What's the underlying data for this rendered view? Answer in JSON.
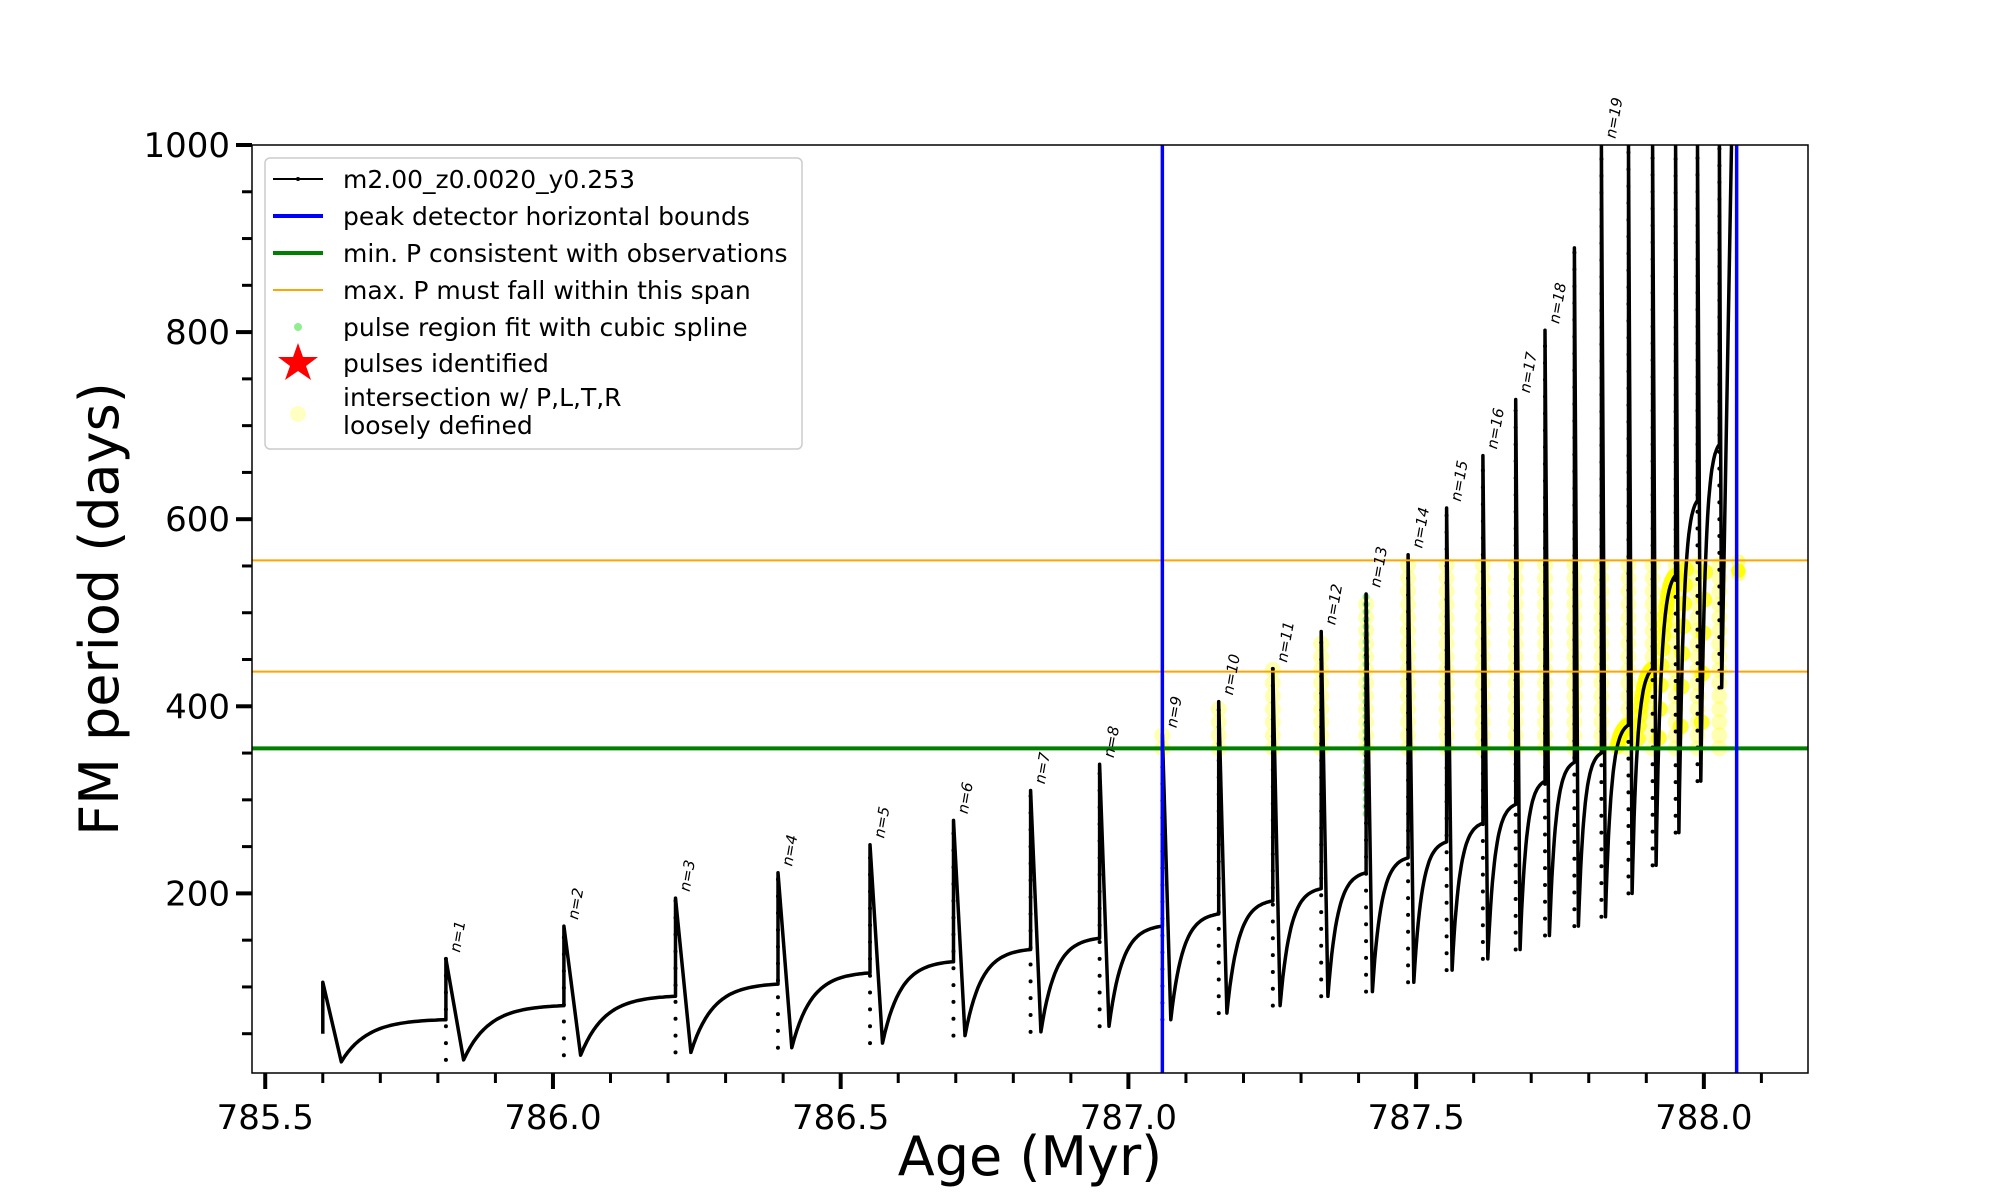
{
  "chart_data": {
    "type": "line",
    "xlabel": "Age (Myr)",
    "ylabel": "FM period (days)",
    "xlim": [
      785.477,
      788.181
    ],
    "ylim": [
      8,
      1000
    ],
    "xticks": [
      785.5,
      786.0,
      786.5,
      787.0,
      787.5,
      788.0
    ],
    "xtick_labels": [
      "785.5",
      "786.0",
      "786.5",
      "787.0",
      "787.5",
      "788.0"
    ],
    "yticks": [
      200,
      400,
      600,
      800,
      1000
    ],
    "ytick_labels": [
      "200",
      "400",
      "600",
      "800",
      "1000"
    ],
    "legend_position": "top-left",
    "legend": [
      {
        "label": "m2.00_z0.0020_y0.253",
        "style": "black-line-dots"
      },
      {
        "label": "peak detector horizontal bounds",
        "style": "blue-line"
      },
      {
        "label": "min. P consistent with observations",
        "style": "green-line"
      },
      {
        "label": "max. P must fall within this span",
        "style": "orange-line"
      },
      {
        "label": "pulse region fit with cubic spline",
        "style": "green-dot"
      },
      {
        "label": "pulses identified",
        "style": "red-star"
      },
      {
        "label": "intersection w/ P,L,T,R",
        "label2": "loosely defined",
        "style": "yellow-circle"
      }
    ],
    "vertical_bounds": [
      787.059,
      788.057
    ],
    "min_period": 355,
    "max_period_span": [
      437,
      556
    ],
    "initial": {
      "age": 785.6,
      "start": 50,
      "spike": 105,
      "min": 20
    },
    "pulses": [
      {
        "label": "n=1",
        "age": 785.814,
        "pre": 65,
        "peak": 130,
        "min": 22
      },
      {
        "label": "n=2",
        "age": 786.019,
        "pre": 80,
        "peak": 165,
        "min": 27
      },
      {
        "label": "n=3",
        "age": 786.213,
        "pre": 90,
        "peak": 195,
        "min": 30
      },
      {
        "label": "n=4",
        "age": 786.391,
        "pre": 103,
        "peak": 222,
        "min": 35
      },
      {
        "label": "n=5",
        "age": 786.551,
        "pre": 115,
        "peak": 252,
        "min": 40
      },
      {
        "label": "n=6",
        "age": 786.696,
        "pre": 127,
        "peak": 278,
        "min": 48
      },
      {
        "label": "n=7",
        "age": 786.83,
        "pre": 140,
        "peak": 310,
        "min": 52
      },
      {
        "label": "n=8",
        "age": 786.95,
        "pre": 152,
        "peak": 338,
        "min": 58
      },
      {
        "label": "n=9",
        "age": 787.059,
        "pre": 165,
        "peak": 370,
        "min": 65
      },
      {
        "label": "n=10",
        "age": 787.157,
        "pre": 178,
        "peak": 405,
        "min": 72
      },
      {
        "label": "n=11",
        "age": 787.251,
        "pre": 192,
        "peak": 440,
        "min": 80
      },
      {
        "label": "n=12",
        "age": 787.335,
        "pre": 205,
        "peak": 480,
        "min": 90
      },
      {
        "label": "n=13",
        "age": 787.413,
        "pre": 222,
        "peak": 520,
        "min": 95
      },
      {
        "label": "n=14",
        "age": 787.486,
        "pre": 238,
        "peak": 562,
        "min": 105
      },
      {
        "label": "n=15",
        "age": 787.553,
        "pre": 255,
        "peak": 612,
        "min": 118
      },
      {
        "label": "n=16",
        "age": 787.616,
        "pre": 275,
        "peak": 668,
        "min": 130
      },
      {
        "label": "n=17",
        "age": 787.673,
        "pre": 295,
        "peak": 728,
        "min": 140
      },
      {
        "label": "n=18",
        "age": 787.724,
        "pre": 320,
        "peak": 802,
        "min": 155
      },
      {
        "label": "",
        "age": 787.775,
        "pre": 340,
        "peak": 890,
        "min": 165
      },
      {
        "label": "n=19",
        "age": 787.822,
        "pre": 350,
        "peak": 1000,
        "min": 175
      },
      {
        "label": "",
        "age": 787.869,
        "pre": 380,
        "peak": 1000,
        "min": 200
      },
      {
        "label": "",
        "age": 787.911,
        "pre": 440,
        "peak": 1000,
        "min": 230
      },
      {
        "label": "",
        "age": 787.951,
        "pre": 540,
        "peak": 1000,
        "min": 265
      },
      {
        "label": "",
        "age": 787.989,
        "pre": 620,
        "peak": 1000,
        "min": 320
      },
      {
        "label": "",
        "age": 788.027,
        "pre": 680,
        "peak": 1000,
        "min": 420
      }
    ],
    "final_rise": {
      "age_end": 788.048,
      "value_end": 1000
    },
    "spline_pulse": "n=13",
    "spline_range": [
      285,
      520
    ]
  }
}
